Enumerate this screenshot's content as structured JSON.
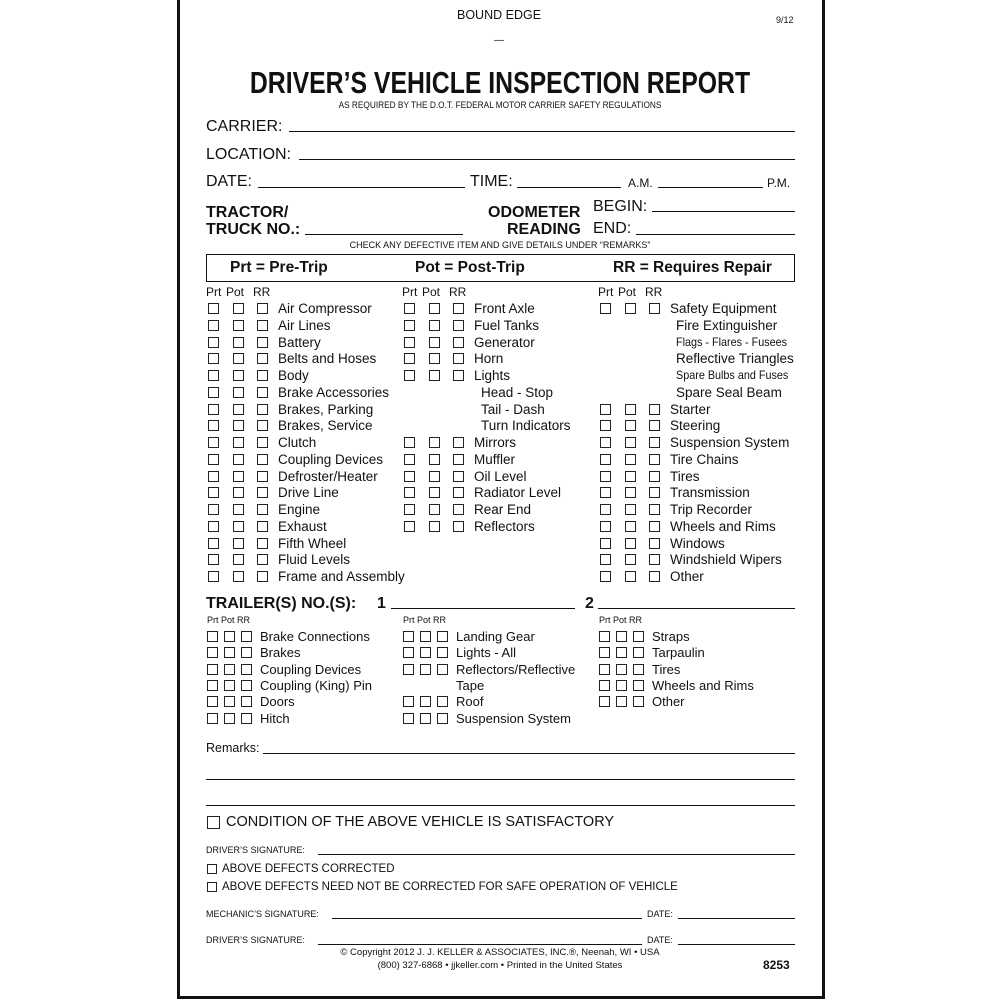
{
  "header": {
    "bound_edge": "BOUND EDGE",
    "revision": "9/12",
    "dash": "—",
    "title": "DRIVER’S VEHICLE INSPECTION REPORT",
    "subtitle": "AS REQUIRED BY THE D.O.T. FEDERAL MOTOR CARRIER SAFETY REGULATIONS"
  },
  "fields": {
    "carrier": "CARRIER:",
    "location": "LOCATION:",
    "date": "DATE:",
    "time": "TIME:",
    "am": "A.M.",
    "pm": "P.M.",
    "tractor1": "TRACTOR/",
    "tractor2": "TRUCK NO.:",
    "odometer1": "ODOMETER",
    "odometer2": "READING",
    "begin": "BEGIN:",
    "end": "END:",
    "instruction": "CHECK ANY DEFECTIVE ITEM AND GIVE DETAILS UNDER “REMARKS”"
  },
  "legend": {
    "prt": "Prt = Pre-Trip",
    "pot": "Pot = Post-Trip",
    "rr": "RR = Requires Repair"
  },
  "col_headers": [
    "Prt",
    "Pot",
    "RR"
  ],
  "tractor_columns": [
    [
      {
        "t": "Air Compressor",
        "c": 1
      },
      {
        "t": "Air Lines",
        "c": 1
      },
      {
        "t": "Battery",
        "c": 1
      },
      {
        "t": "Belts and Hoses",
        "c": 1
      },
      {
        "t": "Body",
        "c": 1
      },
      {
        "t": "Brake Accessories",
        "c": 1
      },
      {
        "t": "Brakes, Parking",
        "c": 1
      },
      {
        "t": "Brakes, Service",
        "c": 1
      },
      {
        "t": "Clutch",
        "c": 1
      },
      {
        "t": "Coupling Devices",
        "c": 1
      },
      {
        "t": "Defroster/Heater",
        "c": 1
      },
      {
        "t": "Drive Line",
        "c": 1
      },
      {
        "t": "Engine",
        "c": 1
      },
      {
        "t": "Exhaust",
        "c": 1
      },
      {
        "t": "Fifth Wheel",
        "c": 1
      },
      {
        "t": "Fluid Levels",
        "c": 1
      },
      {
        "t": "Frame and Assembly",
        "c": 1
      }
    ],
    [
      {
        "t": "Front Axle",
        "c": 1
      },
      {
        "t": "Fuel Tanks",
        "c": 1
      },
      {
        "t": "Generator",
        "c": 1
      },
      {
        "t": "Horn",
        "c": 1
      },
      {
        "t": "Lights",
        "c": 1
      },
      {
        "t": "Head - Stop",
        "c": 0
      },
      {
        "t": "Tail - Dash",
        "c": 0
      },
      {
        "t": "Turn Indicators",
        "c": 0
      },
      {
        "t": "Mirrors",
        "c": 1
      },
      {
        "t": "Muffler",
        "c": 1
      },
      {
        "t": "Oil Level",
        "c": 1
      },
      {
        "t": "Radiator Level",
        "c": 1
      },
      {
        "t": "Rear End",
        "c": 1
      },
      {
        "t": "Reflectors",
        "c": 1
      }
    ],
    [
      {
        "t": "Safety Equipment",
        "c": 1
      },
      {
        "t": "Fire Extinguisher",
        "c": 0
      },
      {
        "t": "Flags - Flares - Fusees",
        "c": 0,
        "s": 1
      },
      {
        "t": "Reflective Triangles",
        "c": 0
      },
      {
        "t": "Spare Bulbs and Fuses",
        "c": 0,
        "s": 1
      },
      {
        "t": "Spare Seal Beam",
        "c": 0
      },
      {
        "t": "Starter",
        "c": 1
      },
      {
        "t": "Steering",
        "c": 1
      },
      {
        "t": "Suspension System",
        "c": 1
      },
      {
        "t": "Tire Chains",
        "c": 1
      },
      {
        "t": "Tires",
        "c": 1
      },
      {
        "t": "Transmission",
        "c": 1
      },
      {
        "t": "Trip Recorder",
        "c": 1
      },
      {
        "t": "Wheels and Rims",
        "c": 1
      },
      {
        "t": "Windows",
        "c": 1
      },
      {
        "t": "Windshield Wipers",
        "c": 1
      },
      {
        "t": "Other",
        "c": 1
      }
    ]
  ],
  "trailer": {
    "label": "TRAILER(S) NO.(S):",
    "one": "1",
    "two": "2",
    "headers": "Prt Pot RR",
    "columns": [
      [
        {
          "t": "Brake Connections",
          "c": 1
        },
        {
          "t": "Brakes",
          "c": 1
        },
        {
          "t": "Coupling Devices",
          "c": 1
        },
        {
          "t": "Coupling (King) Pin",
          "c": 1
        },
        {
          "t": "Doors",
          "c": 1
        },
        {
          "t": "Hitch",
          "c": 1
        }
      ],
      [
        {
          "t": "Landing Gear",
          "c": 1
        },
        {
          "t": "Lights - All",
          "c": 1
        },
        {
          "t": "Reflectors/Reflective",
          "c": 1
        },
        {
          "t": "Tape",
          "c": 0
        },
        {
          "t": "Roof",
          "c": 1
        },
        {
          "t": "Suspension System",
          "c": 1
        }
      ],
      [
        {
          "t": "Straps",
          "c": 1
        },
        {
          "t": "Tarpaulin",
          "c": 1
        },
        {
          "t": "Tires",
          "c": 1
        },
        {
          "t": "Wheels and Rims",
          "c": 1
        },
        {
          "t": "Other",
          "c": 1
        }
      ]
    ]
  },
  "bottom": {
    "remarks": "Remarks:",
    "satisfactory": "CONDITION OF THE ABOVE VEHICLE IS SATISFACTORY",
    "drivers_sig": "DRIVER’S SIGNATURE:",
    "corrected": "ABOVE DEFECTS CORRECTED",
    "not_corrected": "ABOVE DEFECTS NEED NOT BE CORRECTED FOR SAFE OPERATION OF VEHICLE",
    "mechanic_sig": "MECHANIC’S SIGNATURE:",
    "date": "DATE:",
    "drivers_sig2": "DRIVER’S SIGNATURE:",
    "copyright": "© Copyright 2012 J. J. KELLER & ASSOCIATES, INC.®, Neenah, WI • USA",
    "contact": "(800) 327-6868 • jjkeller.com • Printed in the United States",
    "form_number": "8253"
  }
}
